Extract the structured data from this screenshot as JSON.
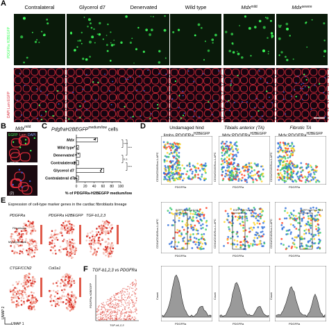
{
  "panel_labels": {
    "A": "A",
    "B": "B",
    "C": "C",
    "D": "D",
    "E": "E",
    "F": "F"
  },
  "panelA": {
    "columns": [
      "Contralateral",
      "Glycerol d7",
      "Denervated",
      "Wild type",
      "Mdx",
      "Mdx"
    ],
    "column_superscripts": [
      "",
      "",
      "",
      "",
      "mild",
      "severe"
    ],
    "row1_label": "PDGFRa H2BEGFP",
    "row2_label": "DAPI Lam EGFP",
    "colors": {
      "row1_bg": "#0a1a0a",
      "row1_dots": "#3cff5a",
      "row2_bg": "#150510",
      "laminin": "#d92b3a",
      "nuclei": "#3a5bd9"
    }
  },
  "panelB": {
    "title": "Mdx",
    "title_sup": "mild",
    "legend": [
      "EGFP",
      "Lam",
      "DAPI"
    ],
    "label_bottom": "CD45",
    "label_bottom2": "(2)"
  },
  "panelC": {
    "title": "PdgfraH2BEGFP",
    "title_sup": "medium/low",
    "title_suffix": "cells",
    "xlabel": "% of PDGFRa-H2BEGFP",
    "xlabel_sup": "medium/low",
    "significance": [
      "****",
      "****",
      "n.s.",
      "****"
    ]
  },
  "chart_data": {
    "type": "bar",
    "orientation": "horizontal",
    "categories": [
      "Mdx",
      "Wild type",
      "Denervated",
      "Contralateral",
      "Glycerol d7",
      "Contralateral d7"
    ],
    "values": [
      48,
      5,
      8,
      5,
      62,
      5
    ],
    "xlim": [
      0,
      100
    ],
    "xticks": [
      "0",
      "20",
      "40",
      "60",
      "80",
      "100"
    ],
    "xlabel": "% of PDGFRa-H2BEGFP medium/low"
  },
  "panelD": {
    "col_titles": [
      {
        "l1": "Undamaged hind",
        "l2": "limbs PDGFRa",
        "sup": "H2BEGFP"
      },
      {
        "l1": "Tibialis anterior (TA)",
        "l2": "Mdx;PDGFRa",
        "sup": "H2BEGFP"
      },
      {
        "l1": "Fibrotic TA",
        "l2": "Mdx;PDGFRa",
        "sup": "H2BEGFP"
      }
    ],
    "ylabel": "CD31/CD45/Sca-1-APC",
    "xlabel": "PDGFRa",
    "ylabel_hist": "Count",
    "gate_labels": [
      "EGFP high+low 6.44",
      "EGFP high+low 51.4",
      "EGFP high+low 78.8"
    ]
  },
  "panelE": {
    "title": "Expression of cell-type marker genes in the cardiac fibroblasts lineage",
    "plots": [
      "PDGFRa",
      "PDGFRa H2BEGFP",
      "TGF-b1,2,3",
      "CTGF/CCN2",
      "Col1a1"
    ],
    "cluster_labels": [
      "Fibroblasts",
      "Myofibroblasts"
    ],
    "umap_x": "UMAP 1",
    "umap_y": "UMAP 2"
  },
  "panelF": {
    "title": "TGF-b1,2,3 vs PDGFRa",
    "ylabel": "PDGFRa H2BEGFP",
    "xlabel": "TGF-b1,2,3"
  }
}
